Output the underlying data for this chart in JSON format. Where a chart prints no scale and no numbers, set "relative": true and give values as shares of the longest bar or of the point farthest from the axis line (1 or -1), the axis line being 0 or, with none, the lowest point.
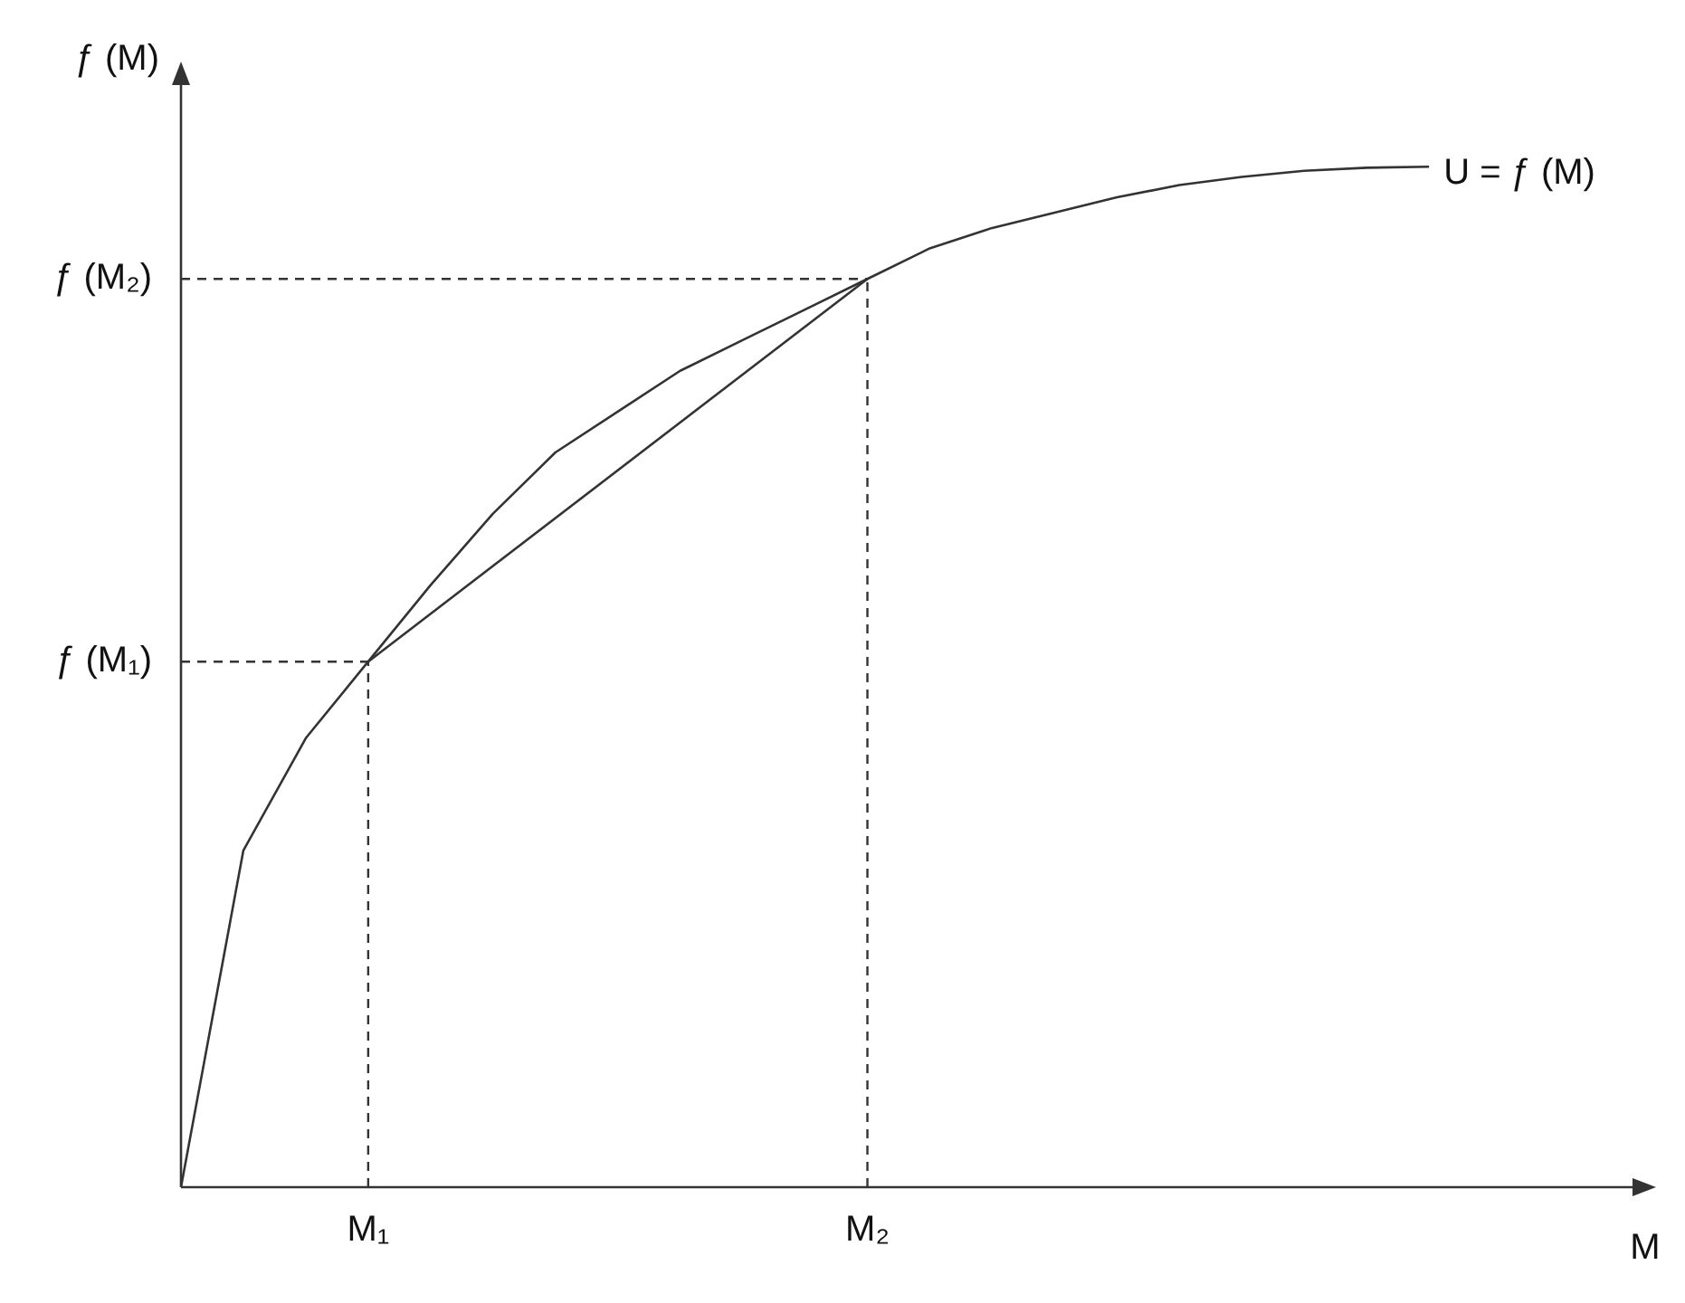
{
  "chart_data": {
    "type": "line",
    "relative": true,
    "ylabel": "ƒ (M)",
    "xlabel": "M",
    "marker": "none",
    "line_style": "solid",
    "categories": [
      null,
      null,
      null,
      "M₁",
      null,
      null,
      null,
      null,
      null,
      null,
      null,
      "M₂",
      null,
      null,
      null,
      null,
      null,
      null,
      null,
      null,
      null,
      null,
      null,
      null
    ],
    "ref_lines": [
      {
        "axis": "x",
        "value": "M₁",
        "line_style": "dashed",
        "color": "#333333"
      },
      {
        "axis": "x",
        "value": "M₂",
        "line_style": "dashed",
        "color": "#333333"
      },
      {
        "axis": "y",
        "value": 0.515,
        "label": "ƒ (M₁)",
        "line_style": "dashed",
        "color": "#333333"
      },
      {
        "axis": "y",
        "value": 0.89,
        "label": "ƒ (M₂)",
        "line_style": "dashed",
        "color": "#333333"
      }
    ],
    "series": [
      {
        "name": "U = ƒ (M)",
        "color": "#333333",
        "values": [
          0,
          0.33,
          0.44,
          0.515,
          0.59,
          0.66,
          0.72,
          0.76,
          0.8,
          0.83,
          0.86,
          0.89,
          0.92,
          0.94,
          0.955,
          0.97,
          0.982,
          0.99,
          0.996,
          0.999,
          1,
          null,
          null,
          null
        ]
      },
      {
        "color": "#333333",
        "values": [
          null,
          null,
          null,
          0.515,
          null,
          null,
          null,
          null,
          null,
          null,
          null,
          0.89,
          null,
          null,
          null,
          null,
          null,
          null,
          null,
          null,
          null,
          null,
          null,
          null
        ]
      }
    ]
  }
}
